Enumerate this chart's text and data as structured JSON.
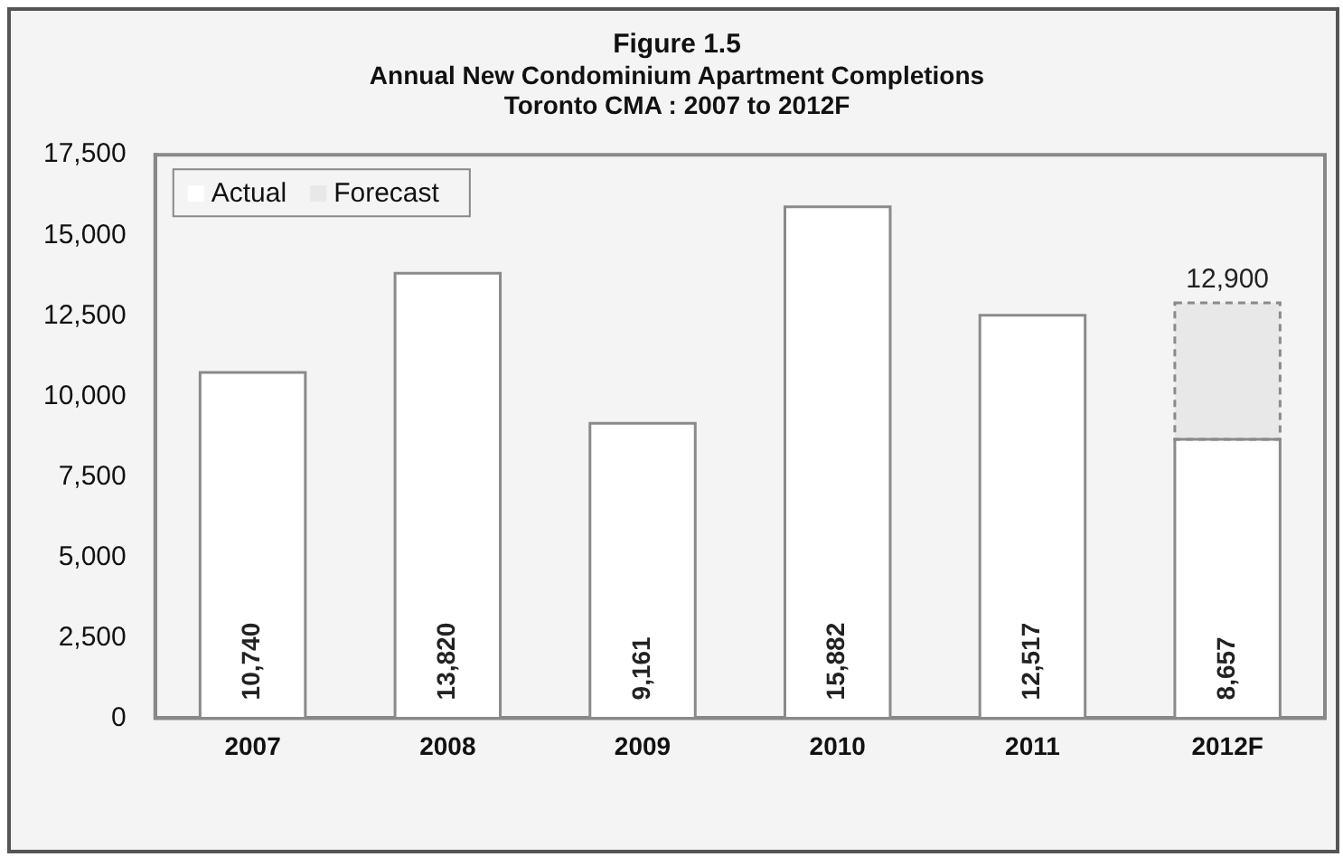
{
  "chart_data": {
    "type": "bar",
    "title": "Figure 1.5",
    "subtitle": "Annual New Condominium Apartment Completions\nToronto CMA : 2007 to 2012F",
    "categories": [
      "2007",
      "2008",
      "2009",
      "2010",
      "2011",
      "2012F"
    ],
    "series": [
      {
        "name": "Actual",
        "color": "#ffffff",
        "values": [
          10740,
          13820,
          9161,
          15882,
          12517,
          8657
        ],
        "value_labels": [
          "10,740",
          "13,820",
          "9,161",
          "15,882",
          "12,517",
          "8,657"
        ]
      },
      {
        "name": "Forecast",
        "color": "#e8e8e8",
        "values": [
          null,
          null,
          null,
          null,
          null,
          4243
        ]
      }
    ],
    "stacked": true,
    "totals": [
      null,
      null,
      null,
      null,
      null,
      "12,900"
    ],
    "ylim": [
      0,
      17500
    ],
    "yticks": [
      {
        "value": 0,
        "label": "0"
      },
      {
        "value": 2500,
        "label": "2,500"
      },
      {
        "value": 5000,
        "label": "5,000"
      },
      {
        "value": 7500,
        "label": "7,500"
      },
      {
        "value": 10000,
        "label": "10,000"
      },
      {
        "value": 12500,
        "label": "12,500"
      },
      {
        "value": 15000,
        "label": "15,000"
      },
      {
        "value": 17500,
        "label": "17,500"
      }
    ],
    "grid": false,
    "legend": "top left"
  }
}
